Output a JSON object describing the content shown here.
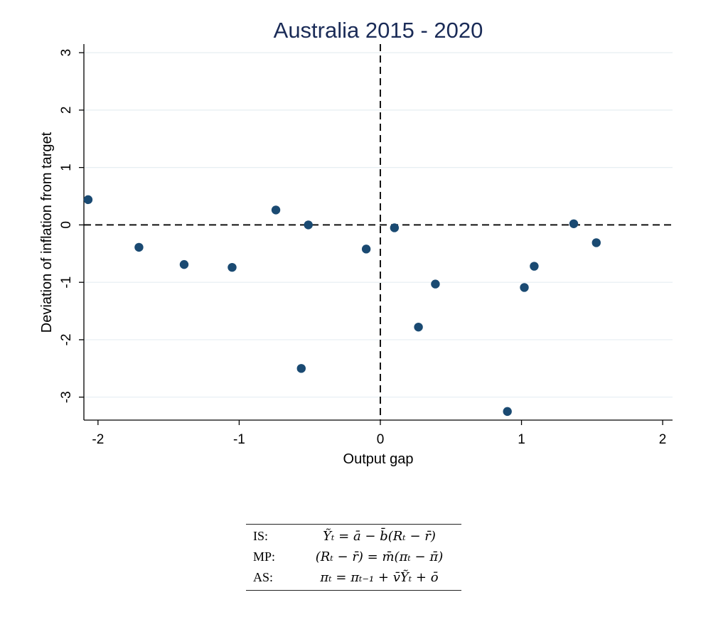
{
  "chart_data": {
    "type": "scatter",
    "title": "Australia 2015 - 2020",
    "xlabel": "Output gap",
    "ylabel": "Deviation of inflation from target",
    "xlim": [
      -2.1,
      2.07
    ],
    "ylim": [
      -3.4,
      3.15
    ],
    "xticks": [
      -2,
      -1,
      0,
      1,
      2
    ],
    "yticks": [
      -3,
      -2,
      -1,
      0,
      1,
      2,
      3
    ],
    "xtick_labels": [
      "-2",
      "-1",
      "0",
      "1",
      "2"
    ],
    "ytick_labels": [
      "-3",
      "-2",
      "-1",
      "0",
      "1",
      "2",
      "3"
    ],
    "grid": "horizontal",
    "reference_lines": {
      "x": 0,
      "y": 0,
      "style": "dashed"
    },
    "marker_color": "#1a4a72",
    "points": [
      {
        "x": -2.07,
        "y": 0.44
      },
      {
        "x": -1.71,
        "y": -0.39
      },
      {
        "x": -1.39,
        "y": -0.69
      },
      {
        "x": -1.05,
        "y": -0.74
      },
      {
        "x": -0.74,
        "y": 0.26
      },
      {
        "x": -0.56,
        "y": -2.5
      },
      {
        "x": -0.51,
        "y": 0.0
      },
      {
        "x": -0.1,
        "y": -0.42
      },
      {
        "x": 0.1,
        "y": -0.05
      },
      {
        "x": 0.27,
        "y": -1.78
      },
      {
        "x": 0.39,
        "y": -1.03
      },
      {
        "x": 0.9,
        "y": -3.25
      },
      {
        "x": 1.02,
        "y": -1.09
      },
      {
        "x": 1.09,
        "y": -0.72
      },
      {
        "x": 1.37,
        "y": 0.02
      },
      {
        "x": 1.53,
        "y": -0.31
      }
    ]
  },
  "equations": [
    {
      "name": "IS:",
      "body": "Ỹₜ = ā − b̄(Rₜ − r̄)"
    },
    {
      "name": "MP:",
      "body": "(Rₜ − r̄) = m̄(πₜ − π̄)"
    },
    {
      "name": "AS:",
      "body": "πₜ = πₜ₋₁ + v̄Ỹₜ + ō"
    }
  ]
}
